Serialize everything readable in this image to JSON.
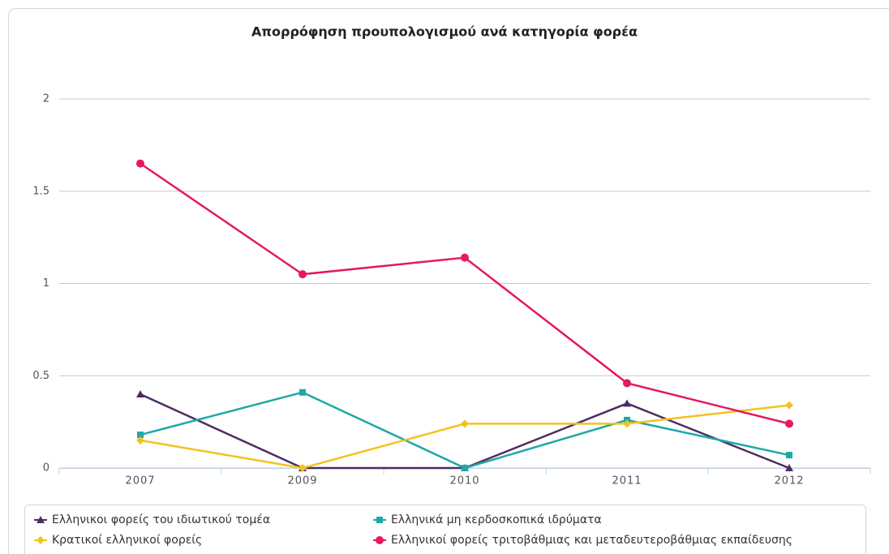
{
  "chart_data": {
    "type": "line",
    "title": "Απορρόφηση προυπολογισμού ανά κατηγορία φορέα",
    "categories": [
      "2007",
      "2009",
      "2010",
      "2011",
      "2012"
    ],
    "series": [
      {
        "name": "Ελληνικοι φορείς του ιδιωτικού τομέα",
        "color": "#4d2c63",
        "symbol": "triangle",
        "values": [
          0.4,
          0,
          0,
          0.35,
          0
        ]
      },
      {
        "name": "Ελληνικά μη κερδοσκοπικά ιδρύματα",
        "color": "#1ea8a6",
        "symbol": "square",
        "values": [
          0.18,
          0.41,
          0,
          0.26,
          0.07
        ]
      },
      {
        "name": "Κρατικοί ελληνικοί φορείς",
        "color": "#f3c21f",
        "symbol": "diamond",
        "values": [
          0.15,
          0,
          0.24,
          0.24,
          0.34
        ]
      },
      {
        "name": "Ελληνικοί φορείς τριτοβάθμιας και μεταδευτεροβάθμιας εκπαίδευσης",
        "color": "#e5195c",
        "symbol": "circle",
        "values": [
          1.65,
          1.05,
          1.14,
          0.46,
          0.24
        ]
      }
    ],
    "ylim": [
      0,
      2
    ],
    "yticks": [
      0,
      0.5,
      1,
      1.5,
      2
    ],
    "grid": true,
    "legend": "bottom"
  }
}
